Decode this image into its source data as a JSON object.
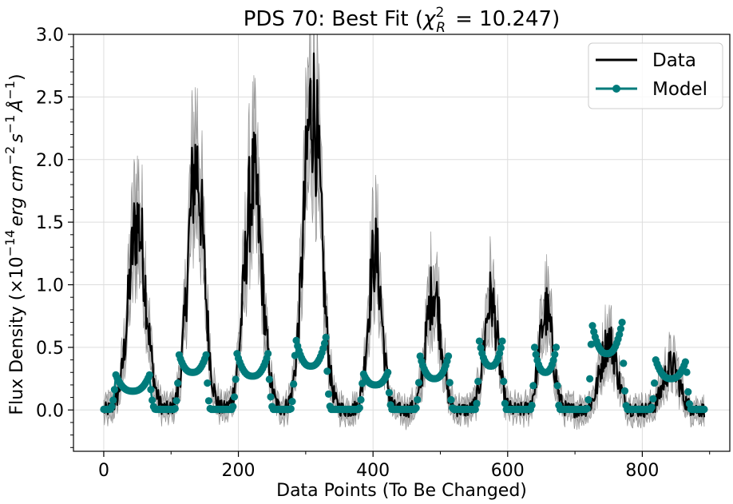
{
  "chart_data": {
    "type": "line",
    "title": "PDS 70: Best Fit (",
    "title_stat": "χ",
    "title_stat_sup": "2",
    "title_stat_sub": "R",
    "title_value": "= 10.247)",
    "xlabel": "Data Points (To Be Changed)",
    "ylabel": "Flux Density (×10",
    "ylabel_exp": "−14",
    "ylabel_units": "erg cm",
    "ylabel_units_exp1": "−2",
    "ylabel_units_s": "s",
    "ylabel_units_exp2": "−1",
    "ylabel_units_A": "Å",
    "ylabel_units_exp3": "−1",
    "ylabel_close": ")",
    "xlim": [
      -45,
      930
    ],
    "ylim": [
      -0.33,
      3.0
    ],
    "x_ticks": [
      0,
      200,
      400,
      600,
      800
    ],
    "x_tick_labels": [
      "0",
      "200",
      "400",
      "600",
      "800"
    ],
    "y_ticks": [
      0.0,
      0.5,
      1.0,
      1.5,
      2.0,
      2.5,
      3.0
    ],
    "y_tick_labels": [
      "0.0",
      "0.5",
      "1.0",
      "1.5",
      "2.0",
      "2.5",
      "3.0"
    ],
    "grid": true,
    "legend_position": "top-right",
    "n_points": 893,
    "series": [
      {
        "name": "Data",
        "color": "#000000",
        "error_color": "#8a8a8a",
        "style": "line",
        "peaks": [
          {
            "center": 50,
            "amplitude": 1.5,
            "width": 13
          },
          {
            "center": 137,
            "amplitude": 1.95,
            "width": 12
          },
          {
            "center": 222,
            "amplitude": 1.8,
            "width": 13
          },
          {
            "center": 310,
            "amplitude": 2.45,
            "width": 13
          },
          {
            "center": 403,
            "amplitude": 1.25,
            "width": 10
          },
          {
            "center": 490,
            "amplitude": 0.97,
            "width": 11
          },
          {
            "center": 575,
            "amplitude": 0.88,
            "width": 10
          },
          {
            "center": 657,
            "amplitude": 0.78,
            "width": 10
          },
          {
            "center": 750,
            "amplitude": 0.55,
            "width": 12
          },
          {
            "center": 843,
            "amplitude": 0.35,
            "width": 12
          }
        ]
      },
      {
        "name": "Model",
        "color": "#007b7b",
        "style": "line-marker",
        "segments": [
          {
            "x0": 18,
            "x1": 68,
            "edge": 0.28,
            "mid": 0.15
          },
          {
            "x0": 112,
            "x1": 152,
            "edge": 0.44,
            "mid": 0.3
          },
          {
            "x0": 198,
            "x1": 244,
            "edge": 0.45,
            "mid": 0.27
          },
          {
            "x0": 285,
            "x1": 330,
            "edge": 0.58,
            "mid": 0.35
          },
          {
            "x0": 385,
            "x1": 422,
            "edge": 0.3,
            "mid": 0.2
          },
          {
            "x0": 470,
            "x1": 512,
            "edge": 0.43,
            "mid": 0.25
          },
          {
            "x0": 558,
            "x1": 592,
            "edge": 0.55,
            "mid": 0.35
          },
          {
            "x0": 640,
            "x1": 672,
            "edge": 0.5,
            "mid": 0.3
          },
          {
            "x0": 725,
            "x1": 770,
            "edge": 0.7,
            "mid": 0.45
          },
          {
            "x0": 820,
            "x1": 865,
            "edge": 0.4,
            "mid": 0.25
          }
        ]
      }
    ]
  }
}
